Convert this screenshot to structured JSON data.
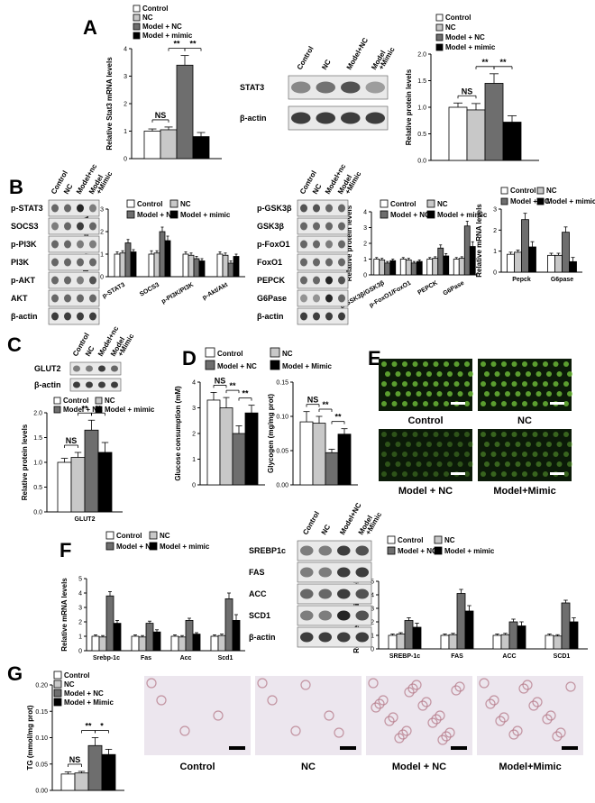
{
  "panels": {
    "A": "A",
    "B": "B",
    "C": "C",
    "D": "D",
    "E": "E",
    "F": "F",
    "G": "G"
  },
  "colors": {
    "control": "#ffffff",
    "nc": "#c8c8c8",
    "model_nc": "#6e6e6e",
    "mimic": "#000000"
  },
  "legend_lower": [
    "Control",
    "NC",
    "Model + NC",
    "Model + mimic"
  ],
  "legend_upper": [
    "Control",
    "NC",
    "Model + NC",
    "Model + Mimic"
  ],
  "blots": {
    "A": {
      "cols": [
        "Control",
        "NC",
        "Model+NC",
        "Model\n+Mimic"
      ],
      "rows": [
        "STAT3",
        "β-actin"
      ]
    },
    "B1": {
      "cols": [
        "Control",
        "NC",
        "Model+nc",
        "Model\n+Mimic"
      ],
      "rows": [
        "p-STAT3",
        "SOCS3",
        "p-PI3K",
        "PI3K",
        "p-AKT",
        "AKT",
        "β-actin"
      ]
    },
    "B2": {
      "cols": [
        "Control",
        "NC",
        "Model+nc",
        "Model\n+Mimic"
      ],
      "rows": [
        "p-GSK3β",
        "GSK3β",
        "p-FoxO1",
        "FoxO1",
        "PEPCK",
        "G6Pase",
        "β-actin"
      ]
    },
    "C": {
      "cols": [
        "Control",
        "NC",
        "Model+nc",
        "Model\n+Mimic"
      ],
      "rows": [
        "GLUT2",
        "β-actin"
      ]
    },
    "F": {
      "cols": [
        "Control",
        "NC",
        "Model+NC",
        "Model\n+Mimic"
      ],
      "rows": [
        "SREBP1c",
        "FAS",
        "ACC",
        "SCD1",
        "β-actin"
      ]
    }
  },
  "images": {
    "E": [
      "Control",
      "NC",
      "Model + NC",
      "Model+Mimic"
    ],
    "G": [
      "Control",
      "NC",
      "Model + NC",
      "Model+Mimic"
    ]
  },
  "chart_data": [
    {
      "id": "A1",
      "type": "bar",
      "categories": [
        ""
      ],
      "series_names": [
        "Control",
        "NC",
        "Model + NC",
        "Model + mimic"
      ],
      "values": [
        [
          1.0,
          1.05,
          3.4,
          0.8
        ]
      ],
      "errors": [
        [
          0.08,
          0.1,
          0.35,
          0.15
        ]
      ],
      "ylabel": "Relative Stat3 mRNA levels",
      "ylim": [
        0,
        4
      ],
      "yticks": [
        "0",
        "1",
        "2",
        "3",
        "4"
      ],
      "xticklabels": [],
      "sig": [
        {
          "pair": [
            0,
            1
          ],
          "text": "NS"
        },
        {
          "pair": [
            1,
            2
          ],
          "text": "**"
        },
        {
          "pair": [
            2,
            3
          ],
          "text": "**"
        }
      ]
    },
    {
      "id": "A2",
      "type": "bar",
      "categories": [
        ""
      ],
      "series_names": [
        "Control",
        "NC",
        "Model + NC",
        "Model + mimic"
      ],
      "values": [
        [
          1.0,
          0.95,
          1.45,
          0.72
        ]
      ],
      "errors": [
        [
          0.08,
          0.12,
          0.18,
          0.12
        ]
      ],
      "ylabel": "Relative protein levels",
      "ylim": [
        0,
        2
      ],
      "yticks": [
        "0.0",
        "0.5",
        "1.0",
        "1.5",
        "2.0"
      ],
      "xticklabels": [],
      "sig": [
        {
          "pair": [
            0,
            1
          ],
          "text": "NS"
        },
        {
          "pair": [
            1,
            2
          ],
          "text": "**"
        },
        {
          "pair": [
            2,
            3
          ],
          "text": "**"
        }
      ]
    },
    {
      "id": "B1",
      "type": "bar",
      "categories": [
        "p-STAT3",
        "SOCS3",
        "p-PI3K/PI3K",
        "p-Akt/Akt"
      ],
      "values": [
        [
          1.0,
          1.05,
          1.5,
          1.1
        ],
        [
          1.0,
          1.05,
          2.0,
          1.6
        ],
        [
          1.0,
          0.95,
          0.8,
          0.7
        ],
        [
          1.0,
          0.95,
          0.6,
          0.9
        ]
      ],
      "errors": [
        [
          0.1,
          0.1,
          0.15,
          0.1
        ],
        [
          0.15,
          0.1,
          0.2,
          0.2
        ],
        [
          0.1,
          0.1,
          0.1,
          0.1
        ],
        [
          0.1,
          0.1,
          0.1,
          0.1
        ]
      ],
      "ylabel": "Relative protein levels",
      "ylim": [
        0,
        3
      ],
      "yticks": [
        "0",
        "1",
        "2",
        "3"
      ],
      "xticklabels": [
        "p-STAT3",
        "SOCS3",
        "p-PI3K/PI3K",
        "p-Akt/Akt"
      ],
      "sig": []
    },
    {
      "id": "B2",
      "type": "bar",
      "categories": [
        "p-GSK3β/GSK3β",
        "p-FoxO1/FoxO1",
        "PEPCK",
        "G6Pase"
      ],
      "values": [
        [
          1.0,
          0.95,
          0.75,
          0.9
        ],
        [
          1.0,
          0.95,
          0.75,
          0.85
        ],
        [
          1.0,
          1.05,
          1.7,
          1.2
        ],
        [
          1.0,
          1.05,
          3.1,
          1.8
        ]
      ],
      "errors": [
        [
          0.1,
          0.1,
          0.1,
          0.1
        ],
        [
          0.1,
          0.1,
          0.1,
          0.1
        ],
        [
          0.1,
          0.1,
          0.2,
          0.15
        ],
        [
          0.1,
          0.1,
          0.3,
          0.3
        ]
      ],
      "ylabel": "Relative protein levels",
      "ylim": [
        0,
        4
      ],
      "yticks": [
        "0",
        "1",
        "2",
        "3",
        "4"
      ],
      "xticklabels": [
        "p-GSK3β/GSK3β",
        "p-FoxO1/FoxO1",
        "PEPCK",
        "G6Pase"
      ],
      "sig": []
    },
    {
      "id": "B3",
      "type": "bar",
      "categories": [
        "Pepck",
        "G6pase"
      ],
      "values": [
        [
          0.85,
          0.95,
          2.5,
          1.2
        ],
        [
          0.8,
          0.8,
          1.9,
          0.5
        ]
      ],
      "errors": [
        [
          0.1,
          0.1,
          0.3,
          0.25
        ],
        [
          0.1,
          0.1,
          0.25,
          0.2
        ]
      ],
      "ylabel": "Relative mRNA levels",
      "ylim": [
        0,
        3
      ],
      "yticks": [
        "0",
        "1",
        "2",
        "3"
      ],
      "xticklabels": [
        "Pepck",
        "G6pase"
      ],
      "sig": []
    },
    {
      "id": "C",
      "type": "bar",
      "categories": [
        "GLUT2"
      ],
      "values": [
        [
          1.0,
          1.1,
          1.65,
          1.2
        ]
      ],
      "errors": [
        [
          0.08,
          0.1,
          0.2,
          0.2
        ]
      ],
      "ylabel": "Relative protein levels",
      "ylim": [
        0,
        2
      ],
      "yticks": [
        "0.0",
        "0.5",
        "1.0",
        "1.5",
        "2.0"
      ],
      "xticklabels": [
        "GLUT2"
      ],
      "sig": [
        {
          "pair": [
            0,
            1
          ],
          "text": "NS"
        },
        {
          "pair": [
            1,
            2
          ],
          "text": "**"
        },
        {
          "pair": [
            2,
            3
          ],
          "text": "**"
        }
      ]
    },
    {
      "id": "D1",
      "type": "bar",
      "categories": [
        ""
      ],
      "values": [
        [
          3.3,
          3.0,
          2.0,
          2.8
        ]
      ],
      "errors": [
        [
          0.3,
          0.4,
          0.3,
          0.3
        ]
      ],
      "ylabel": "Glucose consumption (mM)",
      "ylim": [
        0,
        4
      ],
      "yticks": [
        "0",
        "1",
        "2",
        "3",
        "4"
      ],
      "xticklabels": [],
      "sig": [
        {
          "pair": [
            0,
            1
          ],
          "text": "NS"
        },
        {
          "pair": [
            1,
            2
          ],
          "text": "**"
        },
        {
          "pair": [
            2,
            3
          ],
          "text": "**"
        }
      ]
    },
    {
      "id": "D2",
      "type": "bar",
      "categories": [
        ""
      ],
      "values": [
        [
          0.092,
          0.09,
          0.047,
          0.074
        ]
      ],
      "errors": [
        [
          0.015,
          0.01,
          0.005,
          0.008
        ]
      ],
      "ylabel": "Glycogen (mg/mg prot)",
      "ylim": [
        0,
        0.15
      ],
      "yticks": [
        "0.00",
        "0.05",
        "0.10",
        "0.15"
      ],
      "xticklabels": [],
      "sig": [
        {
          "pair": [
            0,
            1
          ],
          "text": "NS"
        },
        {
          "pair": [
            1,
            2
          ],
          "text": "**"
        },
        {
          "pair": [
            2,
            3
          ],
          "text": "**"
        }
      ]
    },
    {
      "id": "F1",
      "type": "bar",
      "categories": [
        "Srebp-1c",
        "Fas",
        "Acc",
        "Scd1"
      ],
      "values": [
        [
          1.0,
          0.95,
          3.8,
          1.9
        ],
        [
          1.0,
          0.95,
          1.9,
          1.3
        ],
        [
          1.0,
          0.95,
          2.1,
          1.15
        ],
        [
          1.0,
          1.05,
          3.6,
          2.1
        ]
      ],
      "errors": [
        [
          0.1,
          0.1,
          0.3,
          0.2
        ],
        [
          0.1,
          0.1,
          0.15,
          0.15
        ],
        [
          0.1,
          0.1,
          0.15,
          0.1
        ],
        [
          0.1,
          0.1,
          0.4,
          0.4
        ]
      ],
      "ylabel": "Relative mRNA levels",
      "ylim": [
        0,
        5
      ],
      "yticks": [
        "0",
        "1",
        "2",
        "3",
        "4",
        "5"
      ],
      "xticklabels": [
        "Srebp-1c",
        "Fas",
        "Acc",
        "Scd1"
      ],
      "sig": []
    },
    {
      "id": "F2",
      "type": "bar",
      "categories": [
        "SREBP-1c",
        "FAS",
        "ACC",
        "SCD1"
      ],
      "values": [
        [
          1.0,
          1.1,
          2.1,
          1.6
        ],
        [
          1.0,
          1.05,
          4.1,
          2.8
        ],
        [
          1.0,
          1.05,
          2.0,
          1.7
        ],
        [
          1.0,
          0.95,
          3.4,
          2.0
        ]
      ],
      "errors": [
        [
          0.1,
          0.1,
          0.2,
          0.3
        ],
        [
          0.1,
          0.1,
          0.3,
          0.4
        ],
        [
          0.1,
          0.1,
          0.2,
          0.3
        ],
        [
          0.1,
          0.1,
          0.2,
          0.3
        ]
      ],
      "ylabel": "Relative protein levels",
      "ylim": [
        0,
        5
      ],
      "yticks": [
        "0",
        "1",
        "2",
        "3",
        "4",
        "5"
      ],
      "xticklabels": [
        "SREBP-1c",
        "FAS",
        "ACC",
        "SCD1"
      ],
      "sig": []
    },
    {
      "id": "G",
      "type": "bar",
      "categories": [
        ""
      ],
      "values": [
        [
          0.031,
          0.033,
          0.085,
          0.068
        ]
      ],
      "errors": [
        [
          0.004,
          0.003,
          0.015,
          0.01
        ]
      ],
      "ylabel": "TG (mmol/mg prot)",
      "ylim": [
        0,
        0.2
      ],
      "yticks": [
        "0.00",
        "0.05",
        "0.10",
        "0.15",
        "0.20"
      ],
      "xticklabels": [],
      "sig": [
        {
          "pair": [
            0,
            1
          ],
          "text": "NS"
        },
        {
          "pair": [
            1,
            2
          ],
          "text": "**"
        },
        {
          "pair": [
            2,
            3
          ],
          "text": "*"
        }
      ]
    }
  ]
}
